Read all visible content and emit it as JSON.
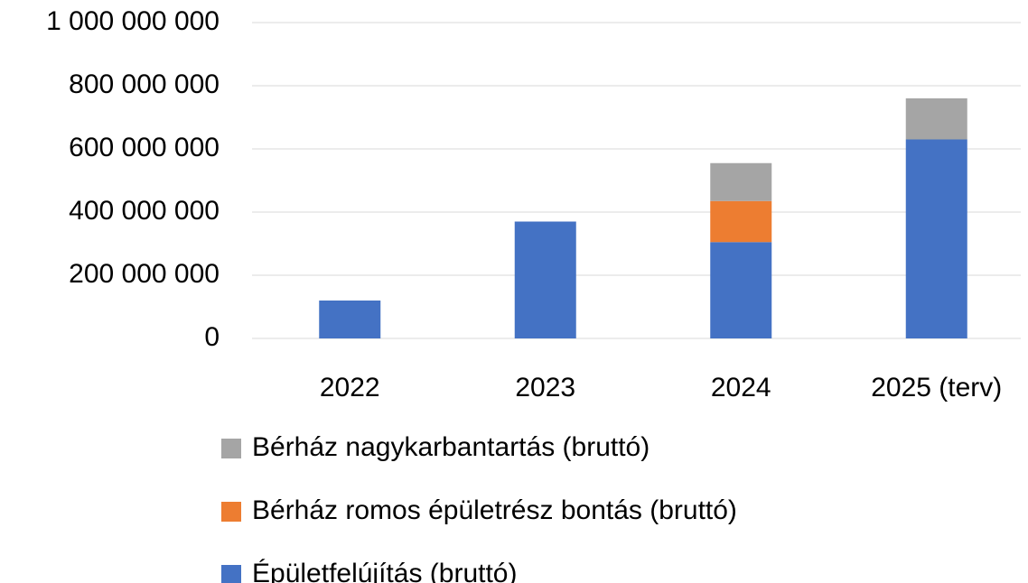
{
  "chart_data": {
    "type": "bar",
    "stacked": true,
    "categories": [
      "2022",
      "2023",
      "2024",
      "2025 (terv)"
    ],
    "series": [
      {
        "name": "Épületfelújítás (bruttó)",
        "color": "#4472c4",
        "values": [
          120000000,
          370000000,
          305000000,
          630000000
        ]
      },
      {
        "name": "Bérház romos épületrész bontás (bruttó)",
        "color": "#ed7d31",
        "values": [
          null,
          null,
          130000000,
          null
        ]
      },
      {
        "name": "Bérház nagykarbantartás (bruttó)",
        "color": "#a5a5a5",
        "values": [
          null,
          null,
          120000000,
          130000000
        ]
      }
    ],
    "ylim": [
      0,
      1000000000
    ],
    "yticks": [
      0,
      {
        "value": 200000000,
        "label": "200 000 000"
      },
      {
        "value": 400000000,
        "label": "400 000 000"
      },
      {
        "value": 600000000,
        "label": "600 000 000"
      },
      {
        "value": 800000000,
        "label": "800 000 000"
      },
      {
        "value": 1000000000,
        "label": "1 000 000 000"
      }
    ],
    "grid": true,
    "legend": "bottom"
  }
}
